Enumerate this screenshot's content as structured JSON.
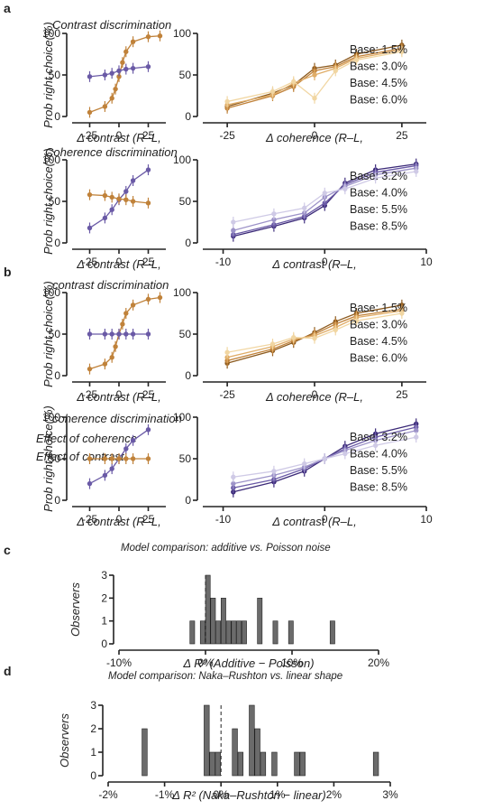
{
  "panel_letters": {
    "a": "a",
    "b": "b",
    "c": "c",
    "d": "d"
  },
  "colors": {
    "orange": [
      "#8c5a1e",
      "#c0823a",
      "#e0ad68",
      "#f1d6a2"
    ],
    "purple": [
      "#3b2a78",
      "#6a5aa6",
      "#9c92c8",
      "#cfcae6"
    ],
    "bar_fill": "#6b6b6b"
  },
  "outside_legend": {
    "coherence_effect": "Effect of coherence",
    "contrast_effect": "Effect of contrast"
  },
  "chart_data": [
    {
      "id": "a_contrast_small",
      "type": "line",
      "title": "Contrast discrimination",
      "xlabel": "Δ contrast (R–L,",
      "ylabel": "Prob right choice(%)",
      "xticks": [
        "-25",
        "0",
        "25"
      ],
      "xlim": [
        -40,
        40
      ],
      "yticks": [
        "0",
        "50",
        "100"
      ],
      "ylim": [
        0,
        100
      ],
      "series": [
        {
          "color_key": "orange",
          "x": [
            -25,
            -12,
            -6,
            -3,
            0,
            3,
            6,
            12,
            25,
            35
          ],
          "values": [
            5,
            12,
            22,
            33,
            48,
            65,
            78,
            90,
            96,
            97
          ]
        },
        {
          "color_key": "purple",
          "x": [
            -25,
            -12,
            -6,
            0,
            6,
            12,
            25
          ],
          "values": [
            48,
            50,
            52,
            55,
            57,
            58,
            60
          ]
        }
      ]
    },
    {
      "id": "a_coherence_large",
      "type": "line",
      "xlabel": "Δ coherence (R–L,",
      "xticks": [
        "-25",
        "0",
        "25"
      ],
      "xlim": [
        -32,
        32
      ],
      "yticks": [
        "0",
        "50",
        "100"
      ],
      "ylim": [
        0,
        100
      ],
      "legend": [
        "Base: 1.5%",
        "Base: 3.0%",
        "Base: 4.5%",
        "Base: 6.0%"
      ],
      "series": [
        {
          "name": "Base: 1.5%",
          "x": [
            -25,
            -12,
            -6,
            0,
            6,
            12,
            25
          ],
          "values": [
            12,
            28,
            38,
            58,
            62,
            75,
            86
          ]
        },
        {
          "name": "Base: 3.0%",
          "x": [
            -25,
            -12,
            -6,
            0,
            6,
            12,
            25
          ],
          "values": [
            10,
            25,
            36,
            55,
            60,
            72,
            82
          ]
        },
        {
          "name": "Base: 4.5%",
          "x": [
            -25,
            -12,
            -6,
            0,
            6,
            12,
            25
          ],
          "values": [
            14,
            26,
            40,
            50,
            58,
            70,
            80
          ]
        },
        {
          "name": "Base: 6.0%",
          "x": [
            -25,
            -12,
            -6,
            0,
            6,
            12,
            25
          ],
          "values": [
            18,
            30,
            42,
            22,
            55,
            68,
            78
          ]
        }
      ]
    },
    {
      "id": "a_coherence_small",
      "type": "line",
      "title": "Coherence discrimination",
      "xlabel": "Δ contrast (R–L,",
      "ylabel": "Prob right choice(%)",
      "xticks": [
        "-25",
        "0",
        "25"
      ],
      "xlim": [
        -40,
        40
      ],
      "yticks": [
        "0",
        "50",
        "100"
      ],
      "ylim": [
        0,
        100
      ],
      "series": [
        {
          "color_key": "purple",
          "x": [
            -25,
            -12,
            -6,
            0,
            6,
            12,
            25
          ],
          "values": [
            18,
            30,
            40,
            52,
            62,
            75,
            88
          ]
        },
        {
          "color_key": "orange",
          "x": [
            -25,
            -12,
            -6,
            0,
            6,
            12,
            25
          ],
          "values": [
            58,
            57,
            55,
            53,
            52,
            50,
            48
          ]
        }
      ]
    },
    {
      "id": "a_contrast_large",
      "type": "line",
      "xlabel": "Δ contrast (R–L,",
      "xticks": [
        "-10",
        "0",
        "10"
      ],
      "xlim": [
        -12,
        10
      ],
      "yticks": [
        "0",
        "50",
        "100"
      ],
      "ylim": [
        0,
        100
      ],
      "legend": [
        "Base: 3.2%",
        "Base: 4.0%",
        "Base: 5.5%",
        "Base: 8.5%"
      ],
      "series": [
        {
          "name": "Base: 3.2%",
          "x": [
            -9,
            -5,
            -2,
            0,
            2,
            5,
            9
          ],
          "values": [
            8,
            20,
            30,
            45,
            72,
            88,
            95
          ]
        },
        {
          "name": "Base: 4.0%",
          "x": [
            -9,
            -5,
            -2,
            0,
            2,
            5,
            9
          ],
          "values": [
            10,
            22,
            32,
            48,
            70,
            85,
            93
          ]
        },
        {
          "name": "Base: 5.5%",
          "x": [
            -9,
            -5,
            -2,
            0,
            2,
            5,
            9
          ],
          "values": [
            15,
            28,
            36,
            55,
            68,
            82,
            90
          ]
        },
        {
          "name": "Base: 8.5%",
          "x": [
            -9,
            -5,
            -2,
            0,
            2,
            5,
            9
          ],
          "values": [
            25,
            35,
            42,
            60,
            65,
            78,
            86
          ]
        }
      ]
    },
    {
      "id": "b_contrast_small",
      "type": "line",
      "title": "contrast discrimination",
      "xlabel": "Δ contrast (R–L,",
      "ylabel": "Prob right choice(%)",
      "xticks": [
        "-25",
        "0",
        "25"
      ],
      "xlim": [
        -40,
        40
      ],
      "yticks": [
        "0",
        "50",
        "100"
      ],
      "ylim": [
        0,
        100
      ],
      "series": [
        {
          "color_key": "orange",
          "x": [
            -25,
            -12,
            -6,
            -3,
            0,
            3,
            6,
            12,
            25,
            35
          ],
          "values": [
            8,
            14,
            22,
            35,
            50,
            62,
            75,
            85,
            92,
            94
          ]
        },
        {
          "color_key": "purple",
          "x": [
            -25,
            -12,
            -6,
            0,
            6,
            12,
            25
          ],
          "values": [
            50,
            50,
            50,
            50,
            50,
            50,
            50
          ]
        }
      ]
    },
    {
      "id": "b_coherence_large",
      "type": "line",
      "xlabel": "Δ coherence (R–L,",
      "xticks": [
        "-25",
        "0",
        "25"
      ],
      "xlim": [
        -32,
        32
      ],
      "yticks": [
        "0",
        "50",
        "100"
      ],
      "ylim": [
        0,
        100
      ],
      "legend": [
        "Base: 1.5%",
        "Base: 3.0%",
        "Base: 4.5%",
        "Base: 6.0%"
      ],
      "series": [
        {
          "name": "Base: 1.5%",
          "x": [
            -25,
            -12,
            -6,
            0,
            6,
            12,
            25
          ],
          "values": [
            15,
            30,
            40,
            52,
            65,
            75,
            85
          ]
        },
        {
          "name": "Base: 3.0%",
          "x": [
            -25,
            -12,
            -6,
            0,
            6,
            12,
            25
          ],
          "values": [
            18,
            32,
            42,
            50,
            62,
            72,
            80
          ]
        },
        {
          "name": "Base: 4.5%",
          "x": [
            -25,
            -12,
            -6,
            0,
            6,
            12,
            25
          ],
          "values": [
            22,
            35,
            44,
            48,
            58,
            70,
            78
          ]
        },
        {
          "name": "Base: 6.0%",
          "x": [
            -25,
            -12,
            -6,
            0,
            6,
            12,
            25
          ],
          "values": [
            28,
            38,
            46,
            45,
            55,
            66,
            75
          ]
        }
      ]
    },
    {
      "id": "b_coherence_small",
      "type": "line",
      "title": "coherence discrimination",
      "xlabel": "Δ contrast (R–L,",
      "ylabel": "Prob right choice(%)",
      "xticks": [
        "-25",
        "0",
        "25"
      ],
      "xlim": [
        -40,
        40
      ],
      "yticks": [
        "0",
        "50",
        "100"
      ],
      "ylim": [
        0,
        100
      ],
      "series": [
        {
          "color_key": "purple",
          "x": [
            -25,
            -12,
            -6,
            0,
            6,
            12,
            25
          ],
          "values": [
            20,
            30,
            38,
            50,
            62,
            72,
            85
          ]
        },
        {
          "color_key": "orange",
          "x": [
            -25,
            -12,
            -6,
            0,
            6,
            12,
            25
          ],
          "values": [
            50,
            50,
            50,
            50,
            50,
            50,
            50
          ]
        }
      ]
    },
    {
      "id": "b_contrast_large",
      "type": "line",
      "xlabel": "Δ contrast (R–L,",
      "xticks": [
        "-10",
        "0",
        "10"
      ],
      "xlim": [
        -12,
        10
      ],
      "yticks": [
        "0",
        "50",
        "100"
      ],
      "ylim": [
        0,
        100
      ],
      "legend": [
        "Base: 3.2%",
        "Base: 4.0%",
        "Base: 5.5%",
        "Base: 8.5%"
      ],
      "series": [
        {
          "name": "Base: 3.2%",
          "x": [
            -9,
            -5,
            -2,
            0,
            2,
            5,
            9
          ],
          "values": [
            10,
            22,
            35,
            50,
            65,
            80,
            92
          ]
        },
        {
          "name": "Base: 4.0%",
          "x": [
            -9,
            -5,
            -2,
            0,
            2,
            5,
            9
          ],
          "values": [
            15,
            25,
            38,
            50,
            62,
            76,
            88
          ]
        },
        {
          "name": "Base: 5.5%",
          "x": [
            -9,
            -5,
            -2,
            0,
            2,
            5,
            9
          ],
          "values": [
            20,
            30,
            40,
            50,
            60,
            72,
            84
          ]
        },
        {
          "name": "Base: 8.5%",
          "x": [
            -9,
            -5,
            -2,
            0,
            2,
            5,
            9
          ],
          "values": [
            28,
            35,
            44,
            50,
            56,
            66,
            76
          ]
        }
      ]
    },
    {
      "id": "c_hist",
      "type": "bar",
      "title": "Model comparison: additive vs. Poisson noise",
      "xlabel": "Δ R² (Additive − Poisson)",
      "ylabel": "Observers",
      "xticks": [
        "-10%",
        "0%",
        "10%",
        "20%"
      ],
      "xlim": [
        -10,
        20
      ],
      "yticks": [
        "0",
        "1",
        "2",
        "3"
      ],
      "ylim": [
        0,
        3
      ],
      "bin_width": 0.6,
      "dashed_x": 0,
      "bins": [
        {
          "x": -1.8,
          "count": 1
        },
        {
          "x": -0.6,
          "count": 1
        },
        {
          "x": 0.0,
          "count": 3
        },
        {
          "x": 0.6,
          "count": 2
        },
        {
          "x": 1.2,
          "count": 1
        },
        {
          "x": 1.8,
          "count": 2
        },
        {
          "x": 2.4,
          "count": 1
        },
        {
          "x": 3.0,
          "count": 1
        },
        {
          "x": 3.6,
          "count": 1
        },
        {
          "x": 4.2,
          "count": 1
        },
        {
          "x": 6.0,
          "count": 2
        },
        {
          "x": 7.8,
          "count": 1
        },
        {
          "x": 9.6,
          "count": 1
        },
        {
          "x": 14.4,
          "count": 1
        }
      ]
    },
    {
      "id": "d_hist",
      "type": "bar",
      "title": "Model comparison: Naka–Rushton vs. linear shape",
      "xlabel": "Δ R² (Naka–Rushton − linear)",
      "ylabel": "Observers",
      "xticks": [
        "-2%",
        "-1%",
        "0%",
        "1%",
        "2%",
        "3%"
      ],
      "xlim": [
        -2,
        3
      ],
      "yticks": [
        "0",
        "1",
        "2",
        "3"
      ],
      "ylim": [
        0,
        3
      ],
      "bin_width": 0.1,
      "dashed_x": 0,
      "bins": [
        {
          "x": -1.4,
          "count": 2
        },
        {
          "x": -0.3,
          "count": 3
        },
        {
          "x": -0.2,
          "count": 1
        },
        {
          "x": -0.1,
          "count": 1
        },
        {
          "x": 0.2,
          "count": 2
        },
        {
          "x": 0.3,
          "count": 1
        },
        {
          "x": 0.5,
          "count": 3
        },
        {
          "x": 0.6,
          "count": 2
        },
        {
          "x": 0.7,
          "count": 1
        },
        {
          "x": 0.9,
          "count": 1
        },
        {
          "x": 1.3,
          "count": 1
        },
        {
          "x": 1.4,
          "count": 1
        },
        {
          "x": 2.7,
          "count": 1
        }
      ]
    }
  ]
}
